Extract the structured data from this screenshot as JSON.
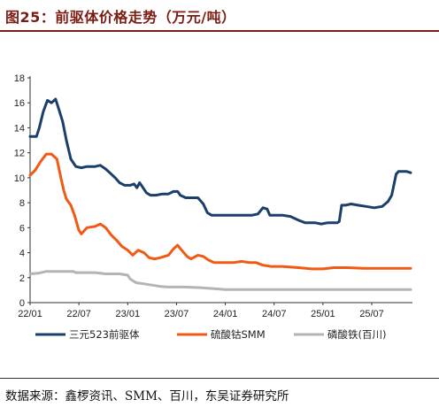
{
  "figure": {
    "title": "图25：前驱体价格走势（万元/吨）",
    "source": "数据来源：鑫椤资讯、SMM、百川，东吴证券研究所"
  },
  "chart_data": {
    "type": "line",
    "title": "图25：前驱体价格走势（万元/吨）",
    "xlabel": "",
    "ylabel": "",
    "ylim": [
      0,
      18
    ],
    "yticks": [
      "0",
      "2",
      "4",
      "6",
      "8",
      "10",
      "12",
      "14",
      "16",
      "18"
    ],
    "xlim": [
      "2022-01",
      "2025-12"
    ],
    "xticks": [
      "22/01",
      "22/07",
      "23/01",
      "23/07",
      "24/01",
      "24/07",
      "25/01",
      "25/07"
    ],
    "grid": false,
    "legend_position": "bottom",
    "series": [
      {
        "name": "三元523前驱体",
        "color": "#1b3f6b",
        "points": [
          [
            "2022-01-01",
            13.3
          ],
          [
            "2022-01-25",
            13.3
          ],
          [
            "2022-02-05",
            14.0
          ],
          [
            "2022-02-20",
            15.3
          ],
          [
            "2022-03-05",
            16.2
          ],
          [
            "2022-03-20",
            16.0
          ],
          [
            "2022-04-05",
            16.3
          ],
          [
            "2022-04-20",
            15.3
          ],
          [
            "2022-05-01",
            14.5
          ],
          [
            "2022-05-15",
            13.0
          ],
          [
            "2022-06-01",
            11.5
          ],
          [
            "2022-06-20",
            10.9
          ],
          [
            "2022-07-10",
            10.8
          ],
          [
            "2022-08-01",
            10.9
          ],
          [
            "2022-09-01",
            10.9
          ],
          [
            "2022-09-20",
            11.0
          ],
          [
            "2022-10-10",
            10.7
          ],
          [
            "2022-10-25",
            10.4
          ],
          [
            "2022-11-15",
            10.0
          ],
          [
            "2022-12-01",
            9.6
          ],
          [
            "2022-12-20",
            9.4
          ],
          [
            "2023-01-10",
            9.4
          ],
          [
            "2023-01-25",
            9.5
          ],
          [
            "2023-02-05",
            9.2
          ],
          [
            "2023-02-15",
            9.6
          ],
          [
            "2023-02-25",
            9.3
          ],
          [
            "2023-03-10",
            8.8
          ],
          [
            "2023-03-25",
            8.6
          ],
          [
            "2023-04-15",
            8.6
          ],
          [
            "2023-05-10",
            8.7
          ],
          [
            "2023-06-01",
            8.7
          ],
          [
            "2023-06-20",
            8.9
          ],
          [
            "2023-07-05",
            8.9
          ],
          [
            "2023-07-15",
            8.6
          ],
          [
            "2023-08-05",
            8.4
          ],
          [
            "2023-09-01",
            8.4
          ],
          [
            "2023-09-20",
            8.4
          ],
          [
            "2023-10-10",
            7.9
          ],
          [
            "2023-10-25",
            7.2
          ],
          [
            "2023-11-10",
            7.0
          ],
          [
            "2024-01-01",
            7.0
          ],
          [
            "2024-03-01",
            7.0
          ],
          [
            "2024-04-10",
            7.0
          ],
          [
            "2024-05-01",
            7.1
          ],
          [
            "2024-05-20",
            7.6
          ],
          [
            "2024-06-05",
            7.5
          ],
          [
            "2024-06-15",
            7.0
          ],
          [
            "2024-08-01",
            7.0
          ],
          [
            "2024-09-01",
            6.9
          ],
          [
            "2024-10-01",
            6.6
          ],
          [
            "2024-10-25",
            6.4
          ],
          [
            "2024-12-01",
            6.4
          ],
          [
            "2024-12-25",
            6.3
          ],
          [
            "2025-01-20",
            6.4
          ],
          [
            "2025-02-25",
            6.4
          ],
          [
            "2025-03-01",
            6.5
          ],
          [
            "2025-03-10",
            7.8
          ],
          [
            "2025-03-25",
            7.8
          ],
          [
            "2025-04-15",
            7.9
          ],
          [
            "2025-05-10",
            7.8
          ],
          [
            "2025-06-10",
            7.7
          ],
          [
            "2025-07-10",
            7.6
          ],
          [
            "2025-08-10",
            7.7
          ],
          [
            "2025-09-01",
            8.1
          ],
          [
            "2025-09-15",
            8.6
          ],
          [
            "2025-10-01",
            10.3
          ],
          [
            "2025-10-10",
            10.5
          ],
          [
            "2025-11-10",
            10.5
          ],
          [
            "2025-11-25",
            10.4
          ]
        ]
      },
      {
        "name": "硫酸钴SMM",
        "color": "#f05a14",
        "points": [
          [
            "2022-01-01",
            10.2
          ],
          [
            "2022-01-20",
            10.6
          ],
          [
            "2022-02-10",
            11.3
          ],
          [
            "2022-03-01",
            11.9
          ],
          [
            "2022-03-20",
            11.9
          ],
          [
            "2022-04-10",
            11.5
          ],
          [
            "2022-04-25",
            10.0
          ],
          [
            "2022-05-05",
            9.0
          ],
          [
            "2022-05-15",
            8.3
          ],
          [
            "2022-06-01",
            7.8
          ],
          [
            "2022-06-15",
            7.0
          ],
          [
            "2022-07-01",
            5.8
          ],
          [
            "2022-07-10",
            5.5
          ],
          [
            "2022-08-01",
            6.0
          ],
          [
            "2022-09-01",
            6.1
          ],
          [
            "2022-09-20",
            6.3
          ],
          [
            "2022-10-10",
            6.0
          ],
          [
            "2022-11-01",
            5.4
          ],
          [
            "2022-11-20",
            5.0
          ],
          [
            "2022-12-10",
            4.5
          ],
          [
            "2023-01-01",
            4.2
          ],
          [
            "2023-01-20",
            3.8
          ],
          [
            "2023-02-10",
            4.2
          ],
          [
            "2023-03-01",
            4.0
          ],
          [
            "2023-03-20",
            3.6
          ],
          [
            "2023-04-10",
            3.5
          ],
          [
            "2023-05-01",
            3.6
          ],
          [
            "2023-06-01",
            3.8
          ],
          [
            "2023-06-20",
            4.3
          ],
          [
            "2023-07-05",
            4.6
          ],
          [
            "2023-07-20",
            4.2
          ],
          [
            "2023-08-10",
            3.7
          ],
          [
            "2023-08-25",
            3.5
          ],
          [
            "2023-09-20",
            3.8
          ],
          [
            "2023-10-10",
            3.7
          ],
          [
            "2023-10-30",
            3.4
          ],
          [
            "2023-11-20",
            3.2
          ],
          [
            "2023-12-20",
            3.2
          ],
          [
            "2024-02-01",
            3.2
          ],
          [
            "2024-03-01",
            3.3
          ],
          [
            "2024-04-01",
            3.2
          ],
          [
            "2024-04-25",
            3.2
          ],
          [
            "2024-05-20",
            3.0
          ],
          [
            "2024-06-20",
            2.9
          ],
          [
            "2024-08-01",
            2.9
          ],
          [
            "2024-10-01",
            2.8
          ],
          [
            "2024-11-20",
            2.7
          ],
          [
            "2025-01-01",
            2.7
          ],
          [
            "2025-02-10",
            2.8
          ],
          [
            "2025-03-01",
            2.8
          ],
          [
            "2025-04-01",
            2.8
          ],
          [
            "2025-06-01",
            2.75
          ],
          [
            "2025-08-01",
            2.75
          ],
          [
            "2025-11-25",
            2.75
          ]
        ]
      },
      {
        "name": "磷酸铁(百川)",
        "color": "#b4b4b4",
        "points": [
          [
            "2022-01-01",
            2.3
          ],
          [
            "2022-02-01",
            2.35
          ],
          [
            "2022-03-01",
            2.5
          ],
          [
            "2022-05-01",
            2.5
          ],
          [
            "2022-06-10",
            2.5
          ],
          [
            "2022-06-20",
            2.4
          ],
          [
            "2022-09-01",
            2.4
          ],
          [
            "2022-10-10",
            2.3
          ],
          [
            "2022-12-01",
            2.3
          ],
          [
            "2023-01-01",
            2.2
          ],
          [
            "2023-01-10",
            1.9
          ],
          [
            "2023-02-01",
            1.6
          ],
          [
            "2023-03-01",
            1.5
          ],
          [
            "2023-04-01",
            1.4
          ],
          [
            "2023-05-01",
            1.3
          ],
          [
            "2023-06-01",
            1.25
          ],
          [
            "2023-08-01",
            1.25
          ],
          [
            "2023-10-01",
            1.2
          ],
          [
            "2023-12-01",
            1.1
          ],
          [
            "2024-01-01",
            1.05
          ],
          [
            "2024-06-01",
            1.05
          ],
          [
            "2024-12-01",
            1.05
          ],
          [
            "2025-06-01",
            1.05
          ],
          [
            "2025-11-25",
            1.05
          ]
        ]
      }
    ]
  }
}
